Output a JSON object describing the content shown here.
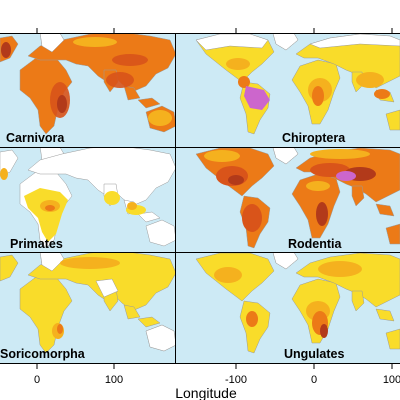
{
  "figure": {
    "x_axis_title": "Longitude",
    "panels": [
      {
        "key": "carnivora",
        "label": "Carnivora"
      },
      {
        "key": "chiroptera",
        "label": "Chiroptera"
      },
      {
        "key": "primates",
        "label": "Primates"
      },
      {
        "key": "rodentia",
        "label": "Rodentia"
      },
      {
        "key": "soricomorpha",
        "label": "Soricomorpha"
      },
      {
        "key": "ungulates",
        "label": "Ungulates"
      }
    ],
    "left_ticks": [
      "0",
      "100"
    ],
    "right_ticks": [
      "-100",
      "0",
      "100"
    ],
    "colors": {
      "ocean": "#cdeaf5",
      "land_empty": "#ffffff",
      "border": "#9a9a9a",
      "yellow": "#f9dc2a",
      "light_orange": "#f5b11e",
      "orange": "#ec7a17",
      "dark_orange": "#d9541a",
      "red": "#b23a1a",
      "purple": "#cc66cc",
      "frame": "#000000"
    }
  }
}
